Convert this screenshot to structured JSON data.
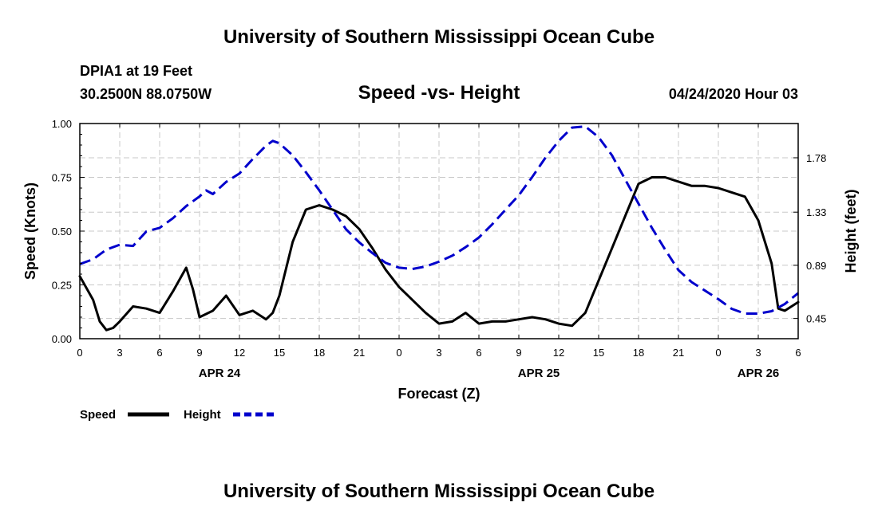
{
  "header": {
    "title_top": "University of Southern Mississippi Ocean Cube",
    "station": "DPIA1 at 19 Feet",
    "coords": "30.2500N 88.0750W",
    "datetime": "04/24/2020 Hour 03",
    "title_bottom": "University of Southern Mississippi Ocean Cube"
  },
  "chart_data": {
    "type": "line",
    "title": "Speed -vs- Height",
    "xlabel": "Forecast (Z)",
    "ylabel": "Speed (Knots)",
    "y2label": "Height (feet)",
    "x_start_hour": 0,
    "x_end_hour": 54,
    "x_tick_labels": [
      "0",
      "3",
      "6",
      "9",
      "12",
      "15",
      "18",
      "21",
      "0",
      "3",
      "6",
      "9",
      "12",
      "15",
      "18",
      "21",
      "0",
      "3",
      "6"
    ],
    "day_labels": [
      {
        "label": "APR 24",
        "hour": 10.5
      },
      {
        "label": "APR 25",
        "hour": 34.5
      },
      {
        "label": "APR 26",
        "hour": 51
      }
    ],
    "ylim": [
      0,
      1
    ],
    "y_ticks": [
      "0.00",
      "0.25",
      "0.50",
      "0.75",
      "1.00"
    ],
    "y2lim": [
      0.2825,
      2.0635
    ],
    "y2_ticks": [
      "0.45",
      "0.89",
      "1.33",
      "1.78"
    ],
    "grid": true,
    "legend": [
      {
        "name": "Speed",
        "color": "#000000",
        "dash": "solid"
      },
      {
        "name": "Height",
        "color": "#0000cc",
        "dash": "dashed"
      }
    ],
    "series": [
      {
        "name": "Speed",
        "axis": "left",
        "color": "#000000",
        "x": [
          0,
          1,
          1.5,
          2,
          2.5,
          3,
          4,
          5,
          6,
          7,
          8,
          8.5,
          9,
          10,
          11,
          12,
          13,
          14,
          14.5,
          15,
          16,
          17,
          18,
          19,
          20,
          21,
          22,
          23,
          24,
          25,
          26,
          27,
          28,
          29,
          30,
          31,
          32,
          33,
          34,
          35,
          36,
          37,
          38,
          39,
          40,
          41,
          42,
          43,
          44,
          45,
          46,
          47,
          48,
          49,
          50,
          51,
          52,
          52.5,
          53,
          54
        ],
        "values": [
          0.29,
          0.18,
          0.08,
          0.04,
          0.05,
          0.08,
          0.15,
          0.14,
          0.12,
          0.22,
          0.33,
          0.23,
          0.1,
          0.13,
          0.2,
          0.11,
          0.13,
          0.09,
          0.12,
          0.2,
          0.45,
          0.6,
          0.62,
          0.6,
          0.57,
          0.51,
          0.42,
          0.32,
          0.24,
          0.18,
          0.12,
          0.07,
          0.08,
          0.12,
          0.07,
          0.08,
          0.08,
          0.09,
          0.1,
          0.09,
          0.07,
          0.06,
          0.12,
          0.27,
          0.42,
          0.57,
          0.72,
          0.75,
          0.75,
          0.73,
          0.71,
          0.71,
          0.7,
          0.68,
          0.66,
          0.55,
          0.35,
          0.14,
          0.13,
          0.17
        ]
      },
      {
        "name": "Height",
        "axis": "right",
        "color": "#0000cc",
        "x": [
          0,
          1,
          2,
          3,
          4,
          5,
          6,
          7,
          8,
          9,
          9.5,
          10,
          11,
          12,
          13,
          14,
          14.5,
          15,
          16,
          17,
          18,
          19,
          20,
          21,
          22,
          23,
          24,
          25,
          26,
          27,
          28,
          29,
          30,
          31,
          32,
          33,
          34,
          35,
          36,
          37,
          38,
          39,
          40,
          41,
          42,
          43,
          44,
          45,
          46,
          47,
          48,
          49,
          50,
          51,
          52,
          52.5,
          53,
          54
        ],
        "values": [
          0.9,
          0.94,
          1.02,
          1.06,
          1.05,
          1.17,
          1.2,
          1.28,
          1.38,
          1.46,
          1.51,
          1.48,
          1.58,
          1.65,
          1.77,
          1.88,
          1.92,
          1.9,
          1.8,
          1.66,
          1.51,
          1.35,
          1.19,
          1.08,
          0.99,
          0.91,
          0.87,
          0.86,
          0.88,
          0.92,
          0.97,
          1.04,
          1.12,
          1.23,
          1.35,
          1.47,
          1.62,
          1.78,
          1.92,
          2.03,
          2.04,
          1.95,
          1.8,
          1.6,
          1.4,
          1.2,
          1.02,
          0.85,
          0.75,
          0.68,
          0.61,
          0.53,
          0.49,
          0.49,
          0.51,
          0.54,
          0.57,
          0.66
        ]
      }
    ]
  }
}
